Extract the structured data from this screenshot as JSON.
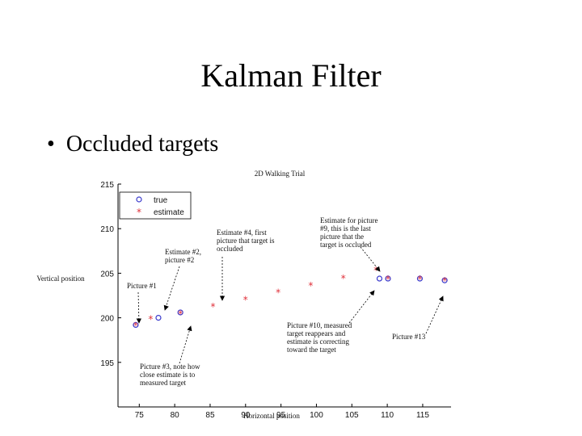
{
  "slide": {
    "title": "Kalman Filter",
    "bullet": "Occluded targets"
  },
  "chart_data": {
    "type": "scatter",
    "title": "2D Walking Trial",
    "xlabel": "Horizontal position",
    "ylabel": "Vertical position",
    "xlim": [
      72,
      119
    ],
    "ylim": [
      190,
      215
    ],
    "xticks": [
      75,
      80,
      85,
      90,
      95,
      100,
      105,
      110,
      115
    ],
    "yticks": [
      195,
      200,
      205,
      210,
      215
    ],
    "legend_position": "top-left",
    "series": [
      {
        "name": "true",
        "marker": "circle",
        "color": "#3a3acc",
        "points": [
          [
            74.5,
            199.2
          ],
          [
            77.7,
            200.0
          ],
          [
            80.8,
            200.6
          ],
          [
            108.9,
            204.4
          ],
          [
            110.1,
            204.4
          ],
          [
            114.6,
            204.4
          ],
          [
            118.1,
            204.2
          ]
        ]
      },
      {
        "name": "estimate",
        "marker": "star",
        "color": "#e0303a",
        "points": [
          [
            74.5,
            199.2
          ],
          [
            76.6,
            199.9
          ],
          [
            80.8,
            200.5
          ],
          [
            85.4,
            201.3
          ],
          [
            90.0,
            202.1
          ],
          [
            94.6,
            202.9
          ],
          [
            99.2,
            203.7
          ],
          [
            103.8,
            204.5
          ],
          [
            108.4,
            205.4
          ],
          [
            110.1,
            204.4
          ],
          [
            114.6,
            204.4
          ],
          [
            118.1,
            204.2
          ]
        ]
      }
    ],
    "annotations": [
      {
        "id": "picture-1",
        "lines": [
          "Picture #1"
        ]
      },
      {
        "id": "estimate-2",
        "lines": [
          "Estimate #2,",
          "picture #2"
        ]
      },
      {
        "id": "estimate-4",
        "lines": [
          "Estimate #4, first",
          "picture that target is",
          "occluded"
        ]
      },
      {
        "id": "estimate-9",
        "lines": [
          "Estimate for picture",
          "#9, this is the last",
          "picture that the",
          "target is occluded"
        ]
      },
      {
        "id": "picture-10",
        "lines": [
          "Picture #10, measured",
          "target reappears and",
          "estimate is correcting",
          "toward the target"
        ]
      },
      {
        "id": "picture-13",
        "lines": [
          "Picture #13"
        ]
      },
      {
        "id": "picture-3",
        "lines": [
          "Picture #3, note how",
          "close estimate is to",
          "measured target"
        ]
      }
    ]
  }
}
